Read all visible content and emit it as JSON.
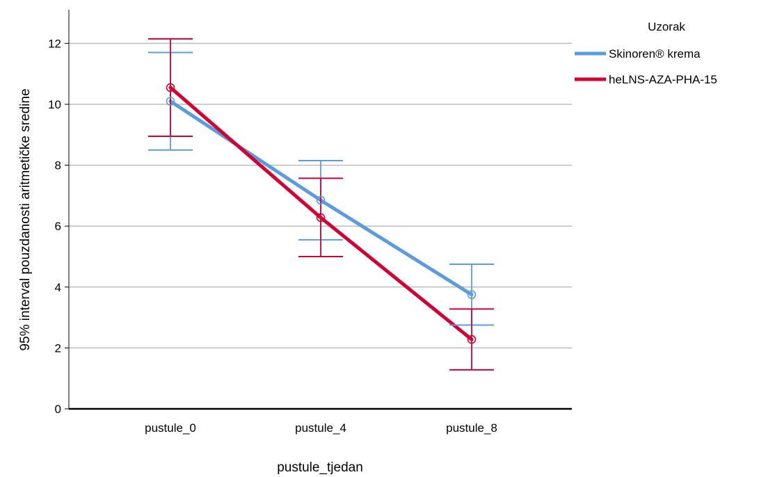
{
  "chart_data": {
    "type": "line",
    "title": "",
    "xlabel": "pustule_tjedan",
    "ylabel": "95% interval pouzdanosti aritmetičke sredine",
    "categories": [
      "pustule_0",
      "pustule_4",
      "pustule_8"
    ],
    "ylim": [
      0,
      13
    ],
    "yticks": [
      0,
      2,
      4,
      6,
      8,
      10,
      12
    ],
    "grid": "horizontal",
    "legend": {
      "title": "Uzorak",
      "position": "top-right"
    },
    "series": [
      {
        "name": "Skinoren® krema",
        "color": "#5b9bdf",
        "values": [
          10.1,
          6.85,
          3.75
        ],
        "ci_lower": [
          8.5,
          5.55,
          2.75
        ],
        "ci_upper": [
          11.7,
          8.15,
          4.75
        ]
      },
      {
        "name": "heLNS-AZA-PHA-15",
        "color": "#d50032",
        "values": [
          10.55,
          6.28,
          2.28
        ],
        "ci_lower": [
          8.95,
          5.0,
          1.28
        ],
        "ci_upper": [
          12.15,
          7.57,
          3.28
        ]
      }
    ]
  }
}
